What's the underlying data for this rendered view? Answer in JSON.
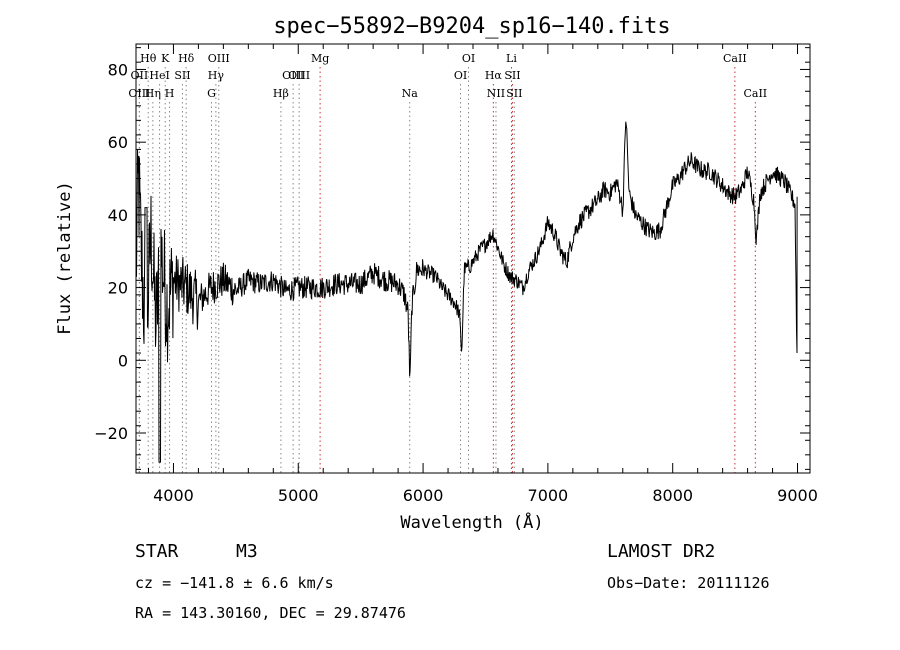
{
  "chart_data": {
    "type": "line",
    "title": "spec−55892−B9204_sp16−140.fits",
    "xlabel": "Wavelength (Å)",
    "ylabel": "Flux (relative)",
    "xlim": [
      3700,
      9100
    ],
    "ylim": [
      -31,
      87
    ],
    "x_ticks": [
      4000,
      5000,
      6000,
      7000,
      8000,
      9000
    ],
    "y_ticks": [
      -20,
      0,
      20,
      40,
      60,
      80
    ],
    "x_tick_labels": [
      "4000",
      "5000",
      "6000",
      "7000",
      "8000",
      "9000"
    ],
    "y_tick_labels": [
      "−20",
      "0",
      "20",
      "40",
      "60",
      "80"
    ],
    "spectrum_anchors": [
      [
        3700,
        25
      ],
      [
        3720,
        50
      ],
      [
        3740,
        30
      ],
      [
        3780,
        5
      ],
      [
        3820,
        35
      ],
      [
        3860,
        10
      ],
      [
        3900,
        30
      ],
      [
        3950,
        15
      ],
      [
        4000,
        22
      ],
      [
        4100,
        20
      ],
      [
        4200,
        16
      ],
      [
        4300,
        20
      ],
      [
        4400,
        22
      ],
      [
        4500,
        19
      ],
      [
        4600,
        22
      ],
      [
        4700,
        21
      ],
      [
        4800,
        22
      ],
      [
        4900,
        19
      ],
      [
        5000,
        20
      ],
      [
        5100,
        20
      ],
      [
        5200,
        20
      ],
      [
        5300,
        21
      ],
      [
        5400,
        21
      ],
      [
        5500,
        21
      ],
      [
        5600,
        24
      ],
      [
        5700,
        22
      ],
      [
        5800,
        21
      ],
      [
        5850,
        18
      ],
      [
        5880,
        13
      ],
      [
        5895,
        -7
      ],
      [
        5910,
        15
      ],
      [
        5950,
        25
      ],
      [
        6000,
        25
      ],
      [
        6050,
        24
      ],
      [
        6100,
        23
      ],
      [
        6150,
        20
      ],
      [
        6200,
        18
      ],
      [
        6250,
        16
      ],
      [
        6290,
        13
      ],
      [
        6310,
        2
      ],
      [
        6330,
        25
      ],
      [
        6380,
        26
      ],
      [
        6450,
        30
      ],
      [
        6500,
        32
      ],
      [
        6560,
        35
      ],
      [
        6600,
        31
      ],
      [
        6650,
        26
      ],
      [
        6700,
        23
      ],
      [
        6750,
        22
      ],
      [
        6800,
        20
      ],
      [
        6850,
        25
      ],
      [
        6900,
        28
      ],
      [
        6950,
        32
      ],
      [
        7000,
        38
      ],
      [
        7050,
        35
      ],
      [
        7100,
        30
      ],
      [
        7150,
        27
      ],
      [
        7200,
        34
      ],
      [
        7250,
        38
      ],
      [
        7300,
        40
      ],
      [
        7400,
        44
      ],
      [
        7450,
        47
      ],
      [
        7500,
        46
      ],
      [
        7550,
        49
      ],
      [
        7580,
        45
      ],
      [
        7600,
        41
      ],
      [
        7625,
        68
      ],
      [
        7650,
        46
      ],
      [
        7700,
        40
      ],
      [
        7750,
        38
      ],
      [
        7800,
        36
      ],
      [
        7850,
        35
      ],
      [
        7900,
        36
      ],
      [
        8000,
        48
      ],
      [
        8050,
        50
      ],
      [
        8100,
        53
      ],
      [
        8150,
        55
      ],
      [
        8200,
        53
      ],
      [
        8250,
        52
      ],
      [
        8300,
        52
      ],
      [
        8400,
        48
      ],
      [
        8450,
        46
      ],
      [
        8500,
        45
      ],
      [
        8550,
        47
      ],
      [
        8600,
        52
      ],
      [
        8650,
        44
      ],
      [
        8670,
        33
      ],
      [
        8700,
        46
      ],
      [
        8800,
        52
      ],
      [
        8900,
        49
      ],
      [
        8980,
        43
      ],
      [
        8995,
        2
      ]
    ],
    "spectral_lines": [
      {
        "label": "Hθ",
        "wavelength": 3798,
        "row": 1,
        "color": "#8a8a8a"
      },
      {
        "label": "OII",
        "wavelength": 3727,
        "row": 2,
        "color": "#8a8a8a"
      },
      {
        "label": "OIII",
        "wavelength": 3727,
        "row": 3,
        "color": "#8a8a8a"
      },
      {
        "label": "Hη",
        "wavelength": 3835,
        "row": 3,
        "color": "#8a8a8a"
      },
      {
        "label": "K",
        "wavelength": 3934,
        "row": 1,
        "color": "#8a8a8a"
      },
      {
        "label": "HeI",
        "wavelength": 3889,
        "row": 2,
        "color": "#8a8a8a"
      },
      {
        "label": "SII",
        "wavelength": 4072,
        "row": 2,
        "color": "#8a8a8a"
      },
      {
        "label": "H",
        "wavelength": 3969,
        "row": 3,
        "color": "#8a8a8a"
      },
      {
        "label": "Hδ",
        "wavelength": 4102,
        "row": 1,
        "color": "#8a8a8a"
      },
      {
        "label": "OIII",
        "wavelength": 4363,
        "row": 1,
        "color": "#8a8a8a"
      },
      {
        "label": "Hγ",
        "wavelength": 4340,
        "row": 2,
        "color": "#8a8a8a"
      },
      {
        "label": "G",
        "wavelength": 4305,
        "row": 3,
        "color": "#8a8a8a"
      },
      {
        "label": "Mg",
        "wavelength": 5175,
        "row": 1,
        "color": "#cc3333"
      },
      {
        "label": "OIII",
        "wavelength": 4959,
        "row": 2,
        "color": "#8a8a8a"
      },
      {
        "label": "OIII",
        "wavelength": 5007,
        "row": 2,
        "color": "#8a8a8a"
      },
      {
        "label": "Hβ",
        "wavelength": 4861,
        "row": 3,
        "color": "#8a8a8a"
      },
      {
        "label": "Na",
        "wavelength": 5893,
        "row": 3,
        "color": "#8a8a8a"
      },
      {
        "label": "OI",
        "wavelength": 6364,
        "row": 1,
        "color": "#8a8a8a"
      },
      {
        "label": "OI",
        "wavelength": 6300,
        "row": 2,
        "color": "#8a8a8a"
      },
      {
        "label": "Li",
        "wavelength": 6708,
        "row": 1,
        "color": "#cc3333"
      },
      {
        "label": "Hα",
        "wavelength": 6563,
        "row": 2,
        "color": "#cc3333"
      },
      {
        "label": "SII",
        "wavelength": 6716,
        "row": 2,
        "color": "#cc3333"
      },
      {
        "label": "NII",
        "wavelength": 6584,
        "row": 3,
        "color": "#8a8a8a"
      },
      {
        "label": "SII",
        "wavelength": 6731,
        "row": 3,
        "color": "#8a8a8a"
      },
      {
        "label": "CaII",
        "wavelength": 8498,
        "row": 1,
        "color": "#cc3333"
      },
      {
        "label": "CaII",
        "wavelength": 8662,
        "row": 3,
        "color": "#cc3333"
      }
    ]
  },
  "info": {
    "class_label": "STAR",
    "subclass": "M3",
    "survey": "LAMOST DR2",
    "cz": "cz = −141.8 ± 6.6 km/s",
    "obs_date": "Obs−Date: 20111126",
    "coords": "RA = 143.30160, DEC =  29.87476"
  }
}
